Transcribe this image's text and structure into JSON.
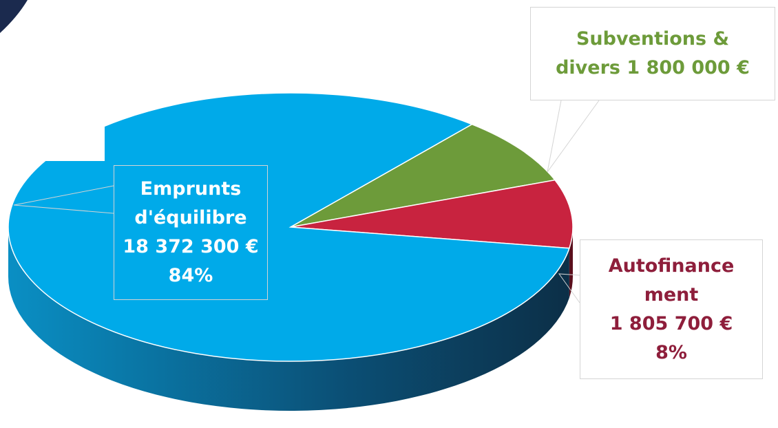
{
  "chart_data": {
    "type": "pie3d",
    "categories": [
      "Subventions &\ndivers",
      "Autofinance\nment",
      "Emprunts\nd'équilibre"
    ],
    "values": [
      1800000,
      1805700,
      18372300
    ],
    "value_labels": [
      "1 800 000 €",
      "1 805 700 €",
      "18 372 300 €"
    ],
    "percent_labels": [
      null,
      "8%",
      "84%"
    ],
    "colors": [
      "#6d9b3a",
      "#c8233f",
      "#00aae9"
    ],
    "label_colors": [
      "#6d9b3a",
      "#8e1e3b",
      "#ffffff"
    ]
  }
}
